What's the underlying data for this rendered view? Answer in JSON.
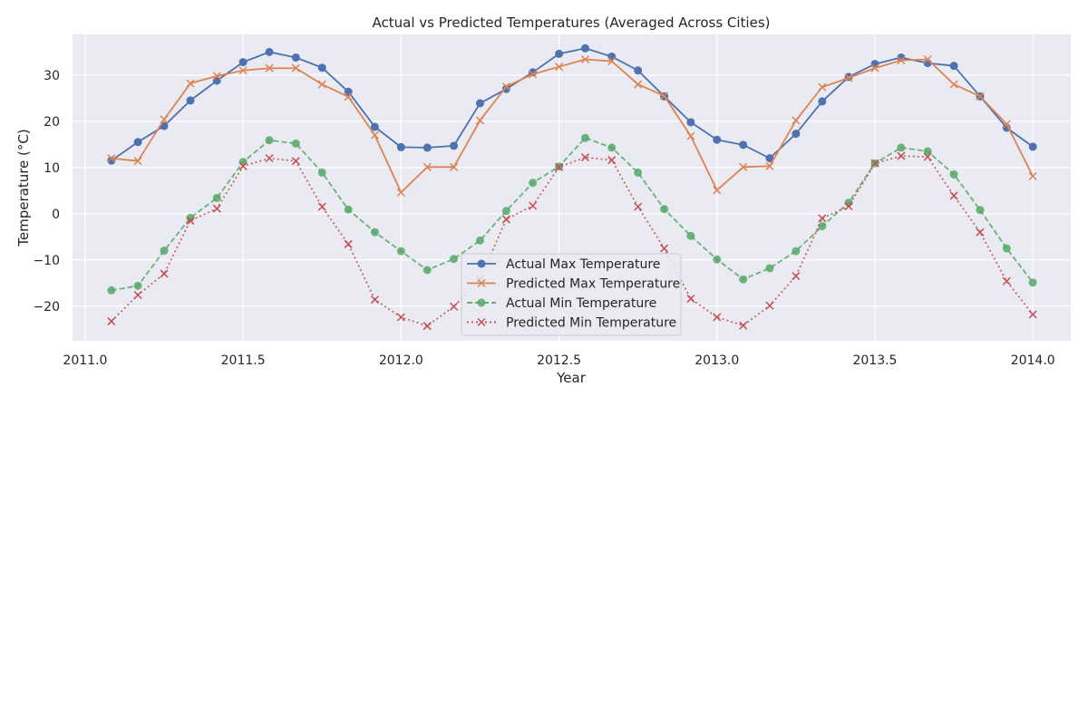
{
  "chart_data": {
    "type": "line",
    "title": "Actual vs Predicted Temperatures (Averaged Across Cities)",
    "xlabel": "Year",
    "ylabel": "Temperature (°C)",
    "xlim": [
      2010.96,
      2014.12
    ],
    "ylim": [
      -27.5,
      38.8
    ],
    "xticks": [
      2011.0,
      2011.5,
      2012.0,
      2012.5,
      2013.0,
      2013.5,
      2014.0
    ],
    "xtick_labels": [
      "2011.0",
      "2011.5",
      "2012.0",
      "2012.5",
      "2013.0",
      "2013.5",
      "2014.0"
    ],
    "yticks": [
      -20,
      -10,
      0,
      10,
      20,
      30
    ],
    "ytick_labels": [
      "−20",
      "−10",
      "0",
      "10",
      "20",
      "30"
    ],
    "grid": true,
    "legend_position": "lower center",
    "x": [
      2011.083,
      2011.167,
      2011.25,
      2011.333,
      2011.417,
      2011.5,
      2011.583,
      2011.667,
      2011.75,
      2011.833,
      2011.917,
      2012.0,
      2012.083,
      2012.167,
      2012.25,
      2012.333,
      2012.417,
      2012.5,
      2012.583,
      2012.667,
      2012.75,
      2012.833,
      2012.917,
      2013.0,
      2013.083,
      2013.167,
      2013.25,
      2013.333,
      2013.417,
      2013.5,
      2013.583,
      2013.667,
      2013.75,
      2013.833,
      2013.917,
      2014.0
    ],
    "series": [
      {
        "name": "Actual Max Temperature",
        "color": "#4c72b0",
        "line_style": "solid",
        "marker": "circle",
        "values": [
          11.5,
          15.5,
          19.0,
          24.5,
          28.8,
          32.8,
          35.0,
          33.8,
          31.6,
          26.4,
          18.8,
          14.4,
          14.3,
          14.7,
          23.9,
          27.0,
          30.6,
          34.6,
          35.8,
          34.0,
          31.0,
          25.4,
          19.8,
          16.0,
          14.9,
          12.0,
          17.3,
          24.3,
          29.6,
          32.4,
          33.8,
          32.6,
          32.0,
          25.4,
          18.6,
          14.5
        ]
      },
      {
        "name": "Predicted Max Temperature",
        "color": "#dd8452",
        "line_style": "solid",
        "marker": "x",
        "values": [
          12.0,
          11.4,
          20.4,
          28.2,
          29.8,
          31.0,
          31.5,
          31.5,
          28.0,
          25.3,
          17.0,
          4.6,
          10.1,
          10.1,
          20.2,
          27.5,
          30.2,
          31.8,
          33.4,
          33.0,
          28.0,
          25.5,
          16.8,
          5.1,
          10.1,
          10.3,
          20.2,
          27.4,
          29.4,
          31.5,
          33.2,
          33.4,
          28.0,
          25.4,
          19.4,
          8.1
        ]
      },
      {
        "name": "Actual Min Temperature",
        "color": "#55a868",
        "line_style": "dashed",
        "marker": "circle",
        "values": [
          -16.6,
          -15.6,
          -8.0,
          -0.9,
          3.4,
          11.2,
          15.9,
          15.2,
          8.9,
          0.9,
          -4.0,
          -8.1,
          -12.2,
          -9.8,
          -5.8,
          0.6,
          6.7,
          10.2,
          16.4,
          14.3,
          8.9,
          1.0,
          -4.8,
          -9.9,
          -14.2,
          -11.8,
          -8.1,
          -2.7,
          2.4,
          10.9,
          14.3,
          13.5,
          8.5,
          0.8,
          -7.5,
          -14.9
        ]
      },
      {
        "name": "Predicted Min Temperature",
        "color": "#c44e52",
        "line_style": "dotted",
        "marker": "x",
        "values": [
          -23.3,
          -17.6,
          -13.0,
          -1.5,
          1.1,
          10.3,
          12.0,
          11.4,
          1.5,
          -6.6,
          -18.6,
          -22.4,
          -24.3,
          -20.1,
          -14.2,
          -1.2,
          1.7,
          10.1,
          12.2,
          11.6,
          1.5,
          -7.5,
          -18.4,
          -22.4,
          -24.2,
          -19.9,
          -13.5,
          -1.0,
          1.6,
          10.9,
          12.5,
          12.3,
          3.9,
          -4.0,
          -14.6,
          -21.8
        ]
      }
    ]
  }
}
